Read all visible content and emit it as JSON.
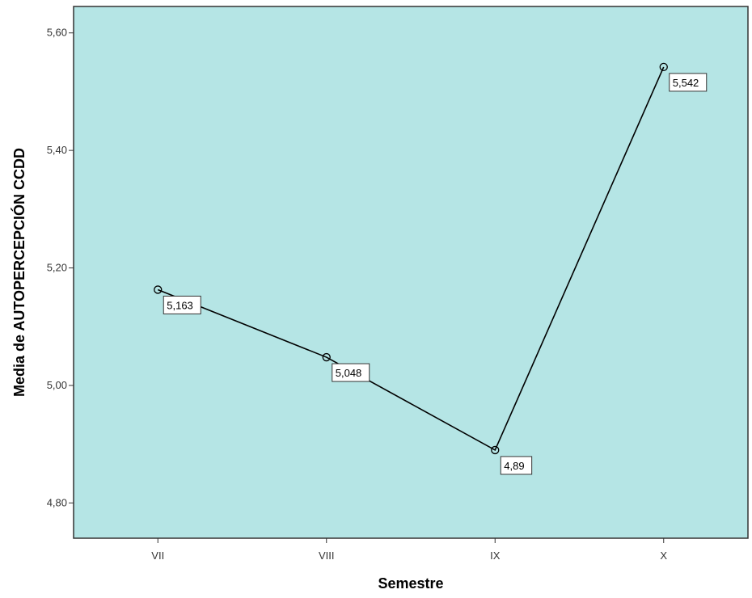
{
  "chart_data": {
    "type": "line",
    "title": "",
    "xlabel": "Semestre",
    "ylabel": "Media de AUTOPERCEPCIÓN CCDD",
    "categories": [
      "VII",
      "VIII",
      "IX",
      "X"
    ],
    "series": [
      {
        "values": [
          5.163,
          5.048,
          4.89,
          5.542
        ]
      }
    ],
    "data_labels": [
      "5,163",
      "5,048",
      "4,89",
      "5,542"
    ],
    "ylim": [
      4.74,
      5.645
    ],
    "yticks": [
      4.8,
      5.0,
      5.2,
      5.4,
      5.6
    ],
    "ytick_labels": [
      "4,80",
      "5,00",
      "5,20",
      "5,40",
      "5,60"
    ],
    "grid": false,
    "legend": "none",
    "marker": "circle",
    "colors": {
      "plot_background": "#b5e5e5",
      "line": "#000000",
      "frame": "#333333"
    }
  }
}
